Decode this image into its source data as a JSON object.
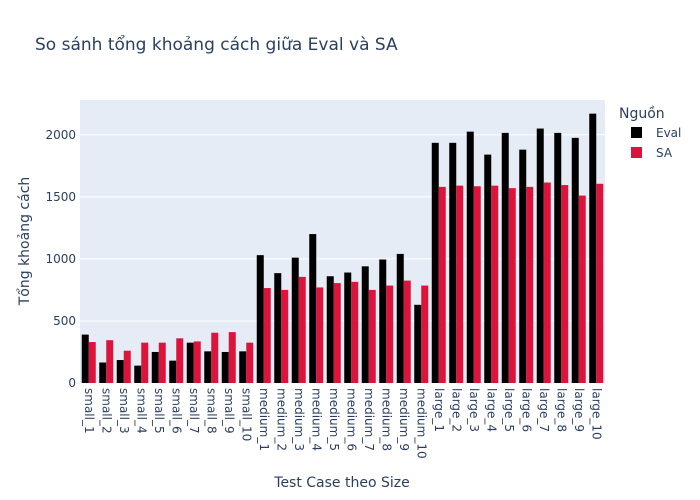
{
  "chart_data": {
    "type": "bar",
    "title": "So sánh tổng khoảng cách giữa Eval và SA",
    "xlabel": "Test Case theo Size",
    "ylabel": "Tổng khoảng cách",
    "ylim": [
      0,
      2280
    ],
    "yticks": [
      0,
      500,
      1000,
      1500,
      2000
    ],
    "ytick_labels": [
      "0",
      "500",
      "1000",
      "1500",
      "2000"
    ],
    "grid": true,
    "legend_title": "Nguồn",
    "legend_placement": "top-right",
    "categories": [
      "small_1",
      "small_2",
      "small_3",
      "small_4",
      "small_5",
      "small_6",
      "small_7",
      "small_8",
      "small_9",
      "small_10",
      "medium_1",
      "medium_2",
      "medium_3",
      "medium_4",
      "medium_5",
      "medium_6",
      "medium_7",
      "medium_8",
      "medium_9",
      "medium_10",
      "large_1",
      "large_2",
      "large_3",
      "large_4",
      "large_5",
      "large_6",
      "large_7",
      "large_8",
      "large_9",
      "large_10"
    ],
    "series": [
      {
        "name": "Eval",
        "color": "#000000",
        "values": [
          390,
          165,
          185,
          140,
          250,
          180,
          325,
          255,
          250,
          255,
          1030,
          885,
          1010,
          1200,
          860,
          890,
          940,
          995,
          1040,
          630,
          1935,
          1935,
          2025,
          1840,
          2015,
          1880,
          2050,
          2015,
          1975,
          2170
        ]
      },
      {
        "name": "SA",
        "color": "#dc143c",
        "values": [
          330,
          345,
          260,
          325,
          325,
          360,
          335,
          405,
          410,
          325,
          765,
          750,
          855,
          770,
          805,
          815,
          750,
          785,
          825,
          785,
          1580,
          1590,
          1585,
          1590,
          1570,
          1580,
          1615,
          1595,
          1510,
          1605
        ]
      }
    ]
  }
}
